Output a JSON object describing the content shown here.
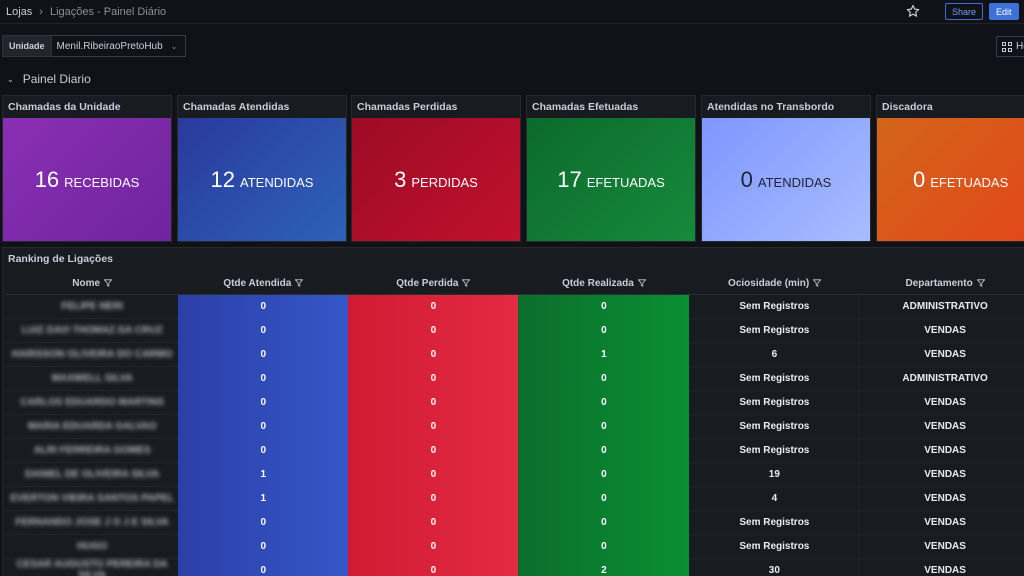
{
  "breadcrumb": {
    "root": "Lojas",
    "current": "Ligações - Painel Diário"
  },
  "header": {
    "share_label": "Share",
    "edit_label": "Edit",
    "home_label": "Ho"
  },
  "variable": {
    "label": "Unidade",
    "value": "Menil.RibeiraoPretoHub"
  },
  "row": {
    "title": "Painel Diario"
  },
  "stats": [
    {
      "title": "Chamadas da Unidade",
      "value": "16",
      "unit": "RECEBIDAS",
      "color": "#7e2aa8"
    },
    {
      "title": "Chamadas Atendidas",
      "value": "12",
      "unit": "ATENDIDAS",
      "color": "#2a4ba8"
    },
    {
      "title": "Chamadas Perdidas",
      "value": "3",
      "unit": "PERDIDAS",
      "color": "#b10d2b"
    },
    {
      "title": "Chamadas Efetuadas",
      "value": "17",
      "unit": "EFETUADAS",
      "color": "#107a33"
    },
    {
      "title": "Atendidas no Transbordo",
      "value": "0",
      "unit": "ATENDIDAS",
      "color": "#8fa6ff"
    },
    {
      "title": "Discadora",
      "value": "0",
      "unit": "EFETUADAS",
      "color": "#dd5a16"
    }
  ],
  "table": {
    "title": "Ranking de Ligações",
    "columns": [
      "Nome",
      "Qtde Atendida",
      "Qtde Perdida",
      "Qtde Realizada",
      "Ociosidade (min)",
      "Departamento"
    ],
    "rows": [
      {
        "nome": "FELIPE NERI",
        "atendida": "0",
        "perdida": "0",
        "realizada": "0",
        "ociosidade": "Sem Registros",
        "departamento": "ADMINISTRATIVO"
      },
      {
        "nome": "LUIZ DAVI THOMAZ DA CRUZ",
        "atendida": "0",
        "perdida": "0",
        "realizada": "0",
        "ociosidade": "Sem Registros",
        "departamento": "VENDAS"
      },
      {
        "nome": "HARISSON OLIVEIRA DO CARMO",
        "atendida": "0",
        "perdida": "0",
        "realizada": "1",
        "ociosidade": "6",
        "departamento": "VENDAS"
      },
      {
        "nome": "MAXWELL SILVA",
        "atendida": "0",
        "perdida": "0",
        "realizada": "0",
        "ociosidade": "Sem Registros",
        "departamento": "ADMINISTRATIVO"
      },
      {
        "nome": "CARLOS EDUARDO MARTINS",
        "atendida": "0",
        "perdida": "0",
        "realizada": "0",
        "ociosidade": "Sem Registros",
        "departamento": "VENDAS"
      },
      {
        "nome": "MARIA EDUARDA GALVAO",
        "atendida": "0",
        "perdida": "0",
        "realizada": "0",
        "ociosidade": "Sem Registros",
        "departamento": "VENDAS"
      },
      {
        "nome": "ALRI FERREIRA GOMES",
        "atendida": "0",
        "perdida": "0",
        "realizada": "0",
        "ociosidade": "Sem Registros",
        "departamento": "VENDAS"
      },
      {
        "nome": "DANIEL DE OLIVEIRA SILVA",
        "atendida": "1",
        "perdida": "0",
        "realizada": "0",
        "ociosidade": "19",
        "departamento": "VENDAS"
      },
      {
        "nome": "EVERTON VIEIRA SANTOS PAPEL",
        "atendida": "1",
        "perdida": "0",
        "realizada": "0",
        "ociosidade": "4",
        "departamento": "VENDAS"
      },
      {
        "nome": "FERNANDO JOSE J O J E SILVA",
        "atendida": "0",
        "perdida": "0",
        "realizada": "0",
        "ociosidade": "Sem Registros",
        "departamento": "VENDAS"
      },
      {
        "nome": "HUGO",
        "atendida": "0",
        "perdida": "0",
        "realizada": "0",
        "ociosidade": "Sem Registros",
        "departamento": "VENDAS"
      },
      {
        "nome": "CESAR AUGUSTO PEREIRA DA SILVA",
        "atendida": "0",
        "perdida": "0",
        "realizada": "2",
        "ociosidade": "30",
        "departamento": "VENDAS"
      }
    ]
  }
}
